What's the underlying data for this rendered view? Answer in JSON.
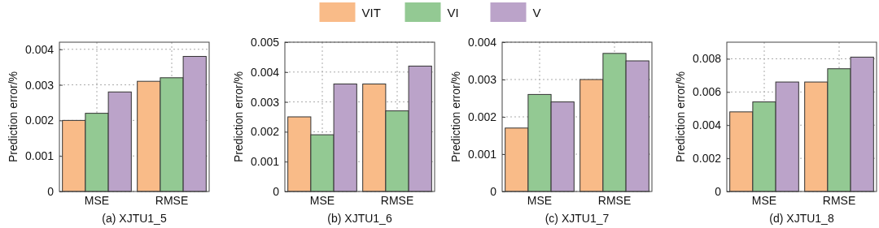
{
  "chart_data": [
    {
      "type": "bar",
      "xlabel": "(a) XJTU1_5",
      "ylabel": "Prediction error/%",
      "categories": [
        "MSE",
        "RMSE"
      ],
      "legend": "top",
      "grid": true,
      "ylim": [
        0,
        0.0042
      ],
      "yticks": [
        0,
        0.001,
        0.002,
        0.003,
        0.004
      ],
      "series": [
        {
          "name": "VIT",
          "color": "#f9bb88",
          "values": [
            0.002,
            0.0031
          ]
        },
        {
          "name": "VI",
          "color": "#93c993",
          "values": [
            0.0022,
            0.0032
          ]
        },
        {
          "name": "V",
          "color": "#bba3c9",
          "values": [
            0.0028,
            0.0038
          ]
        }
      ]
    },
    {
      "type": "bar",
      "xlabel": "(b) XJTU1_6",
      "ylabel": "Prediction error/%",
      "categories": [
        "MSE",
        "RMSE"
      ],
      "grid": true,
      "ylim": [
        0,
        0.005
      ],
      "yticks": [
        0,
        0.001,
        0.002,
        0.003,
        0.004,
        0.005
      ],
      "series": [
        {
          "color": "#f9bb88",
          "values": [
            0.0025,
            0.0036
          ]
        },
        {
          "color": "#93c993",
          "values": [
            0.0019,
            0.0027
          ]
        },
        {
          "color": "#bba3c9",
          "values": [
            0.0036,
            0.0042
          ]
        }
      ]
    },
    {
      "type": "bar",
      "xlabel": "(c) XJTU1_7",
      "ylabel": "Prediction error/%",
      "categories": [
        "MSE",
        "RMSE"
      ],
      "grid": true,
      "ylim": [
        0,
        0.004
      ],
      "yticks": [
        0,
        0.001,
        0.002,
        0.003,
        0.004
      ],
      "series": [
        {
          "color": "#f9bb88",
          "values": [
            0.0017,
            0.003
          ]
        },
        {
          "color": "#93c993",
          "values": [
            0.0026,
            0.0037
          ]
        },
        {
          "color": "#bba3c9",
          "values": [
            0.0024,
            0.0035
          ]
        }
      ]
    },
    {
      "type": "bar",
      "xlabel": "(d) XJTU1_8",
      "ylabel": "Prediction error/%",
      "categories": [
        "MSE",
        "RMSE"
      ],
      "grid": true,
      "ylim": [
        0,
        0.009
      ],
      "yticks": [
        0,
        0.002,
        0.004,
        0.006,
        0.008
      ],
      "series": [
        {
          "color": "#f9bb88",
          "values": [
            0.0048,
            0.0066
          ]
        },
        {
          "color": "#93c993",
          "values": [
            0.0054,
            0.0074
          ]
        },
        {
          "color": "#bba3c9",
          "values": [
            0.0066,
            0.0081
          ]
        }
      ]
    }
  ]
}
